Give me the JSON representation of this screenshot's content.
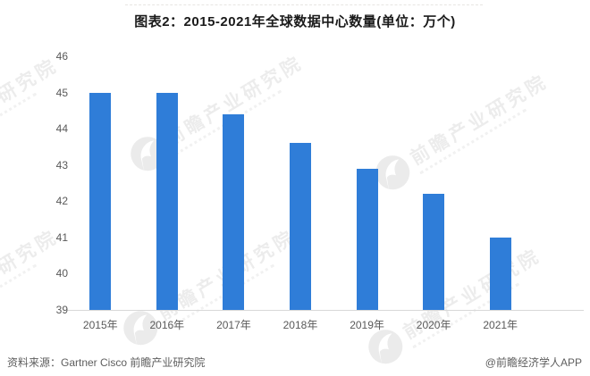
{
  "title": "图表2：2015-2021年全球数据中心数量(单位：万个)",
  "footer": {
    "source": "资料来源：Gartner Cisco 前瞻产业研究院",
    "credit": "@前瞻经济学人APP"
  },
  "watermark": {
    "text": "前瞻产业研究院",
    "logo": "qianzhan-bird-logo"
  },
  "colors": {
    "bar": "#2F7DD8",
    "axis_line": "#D8D8D8",
    "tick_text": "#595959",
    "footer_text": "#5E5E5E",
    "watermark_text": "rgba(0,0,0,0.075)"
  },
  "chart_data": {
    "type": "bar",
    "title": "图表2：2015-2021年全球数据中心数量(单位：万个)",
    "unit": "万个",
    "categories": [
      "2015年",
      "2016年",
      "2017年",
      "2018年",
      "2019年",
      "2020年",
      "2021年"
    ],
    "values": [
      45.0,
      45.0,
      44.4,
      43.6,
      42.9,
      42.2,
      41.0
    ],
    "xlabel": "",
    "ylabel": "",
    "ylim": [
      39,
      46
    ],
    "yticks": [
      39,
      40,
      41,
      42,
      43,
      44,
      45,
      46
    ],
    "grid": false,
    "legend": false,
    "bar_color": "#2F7DD8"
  }
}
